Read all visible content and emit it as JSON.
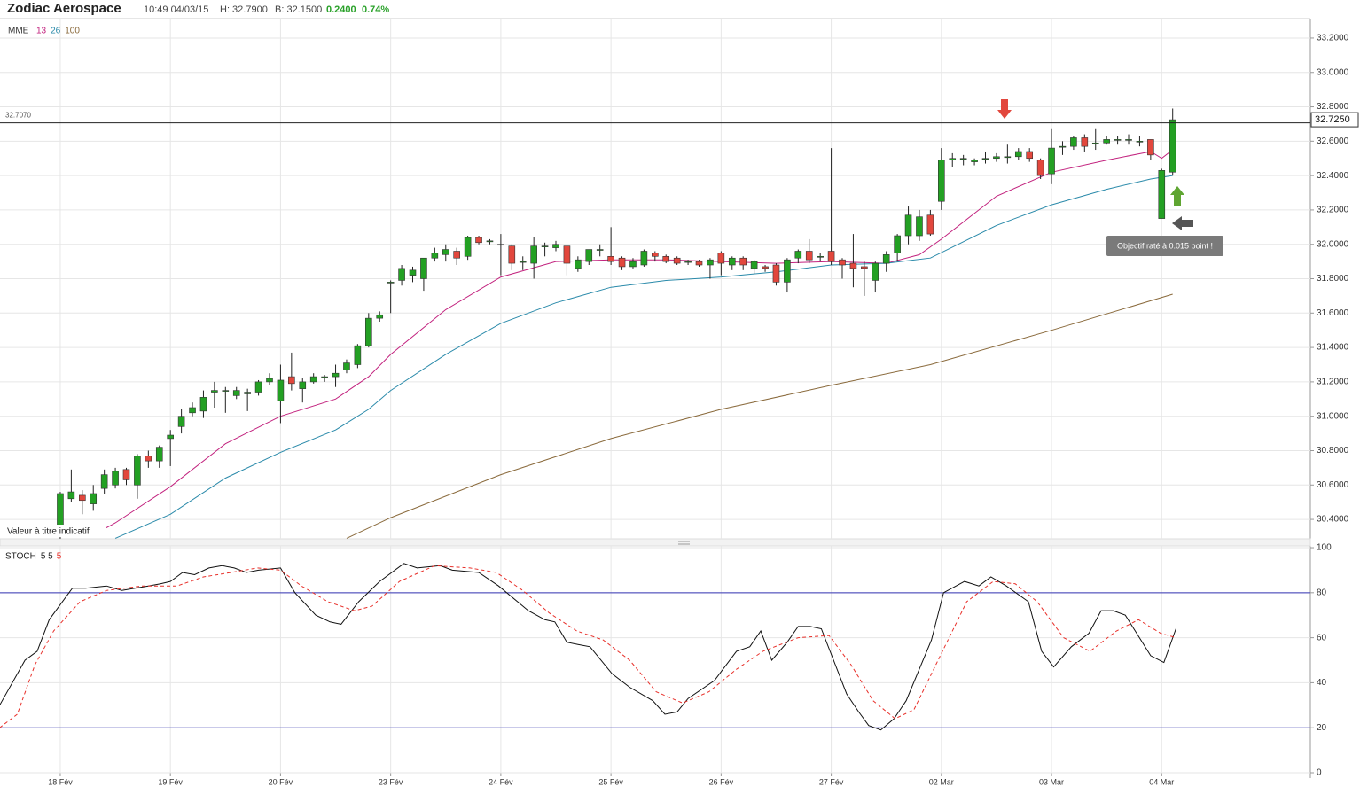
{
  "header": {
    "title": "Zodiac Aerospace",
    "time": "10:49 04/03/15",
    "high": "H: 32.7900",
    "low": "B: 32.1500",
    "change": "0.2400",
    "change_pct": "0.74%"
  },
  "chart_data": [
    {
      "type": "candlestick",
      "legend_title": "MME",
      "categories": [
        "18 Fév",
        null,
        null,
        null,
        null,
        null,
        null,
        null,
        null,
        null,
        "19 Fév",
        null,
        null,
        null,
        null,
        null,
        null,
        null,
        null,
        null,
        "20 Fév",
        null,
        null,
        null,
        null,
        null,
        null,
        null,
        null,
        null,
        "23 Fév",
        null,
        null,
        null,
        null,
        null,
        null,
        null,
        null,
        null,
        "24 Fév",
        null,
        null,
        null,
        null,
        null,
        null,
        null,
        null,
        null,
        "25 Fév",
        null,
        null,
        null,
        null,
        null,
        null,
        null,
        null,
        null,
        "26 Fév",
        null,
        null,
        null,
        null,
        null,
        null,
        null,
        null,
        null,
        "27 Fév",
        null,
        null,
        null,
        null,
        null,
        null,
        null,
        null,
        null,
        "02 Mar",
        null,
        null,
        null,
        null,
        null,
        null,
        null,
        null,
        null,
        "03 Mar",
        null,
        null,
        null,
        null,
        null,
        null,
        null,
        null,
        null,
        "04 Mar",
        null
      ],
      "open": [
        30.3,
        30.52,
        30.54,
        30.49,
        30.58,
        30.6,
        30.69,
        30.6,
        30.77,
        30.74,
        30.87,
        30.94,
        31.02,
        31.03,
        31.14,
        31.15,
        31.12,
        31.13,
        31.14,
        31.2,
        31.09,
        31.23,
        31.16,
        31.2,
        31.23,
        31.23,
        31.27,
        31.3,
        31.41,
        31.57,
        31.78,
        31.79,
        31.82,
        31.8,
        31.92,
        31.94,
        31.96,
        31.93,
        32.04,
        32.02,
        32.0,
        31.99,
        31.9,
        31.89,
        31.99,
        31.98,
        31.99,
        31.86,
        31.9,
        31.97,
        31.93,
        31.92,
        31.87,
        31.88,
        31.95,
        31.93,
        31.92,
        31.9,
        31.9,
        31.88,
        31.95,
        31.88,
        31.92,
        31.86,
        31.87,
        31.88,
        31.78,
        31.92,
        31.96,
        31.93,
        31.96,
        31.91,
        31.89,
        31.87,
        31.79,
        31.89,
        31.95,
        32.05,
        32.05,
        32.17,
        32.25,
        32.49,
        32.5,
        32.48,
        32.5,
        32.5,
        32.51,
        32.51,
        32.54,
        32.49,
        32.41,
        32.57,
        32.57,
        32.62,
        32.59,
        32.59,
        32.61,
        32.61,
        32.6,
        32.61,
        32.15,
        32.42
      ],
      "high": [
        30.56,
        30.69,
        30.57,
        30.6,
        30.69,
        30.7,
        30.7,
        30.78,
        30.8,
        30.83,
        30.92,
        31.04,
        31.08,
        31.15,
        31.2,
        31.17,
        31.17,
        31.16,
        31.21,
        31.25,
        31.3,
        31.37,
        31.22,
        31.25,
        31.24,
        31.3,
        31.33,
        31.42,
        31.6,
        31.61,
        31.79,
        31.88,
        31.87,
        31.92,
        31.98,
        32.0,
        31.98,
        32.05,
        32.05,
        32.03,
        32.06,
        32.0,
        31.93,
        32.04,
        32.01,
        32.02,
        31.99,
        31.93,
        31.97,
        32.0,
        32.1,
        31.93,
        31.92,
        31.97,
        31.96,
        31.94,
        31.93,
        31.91,
        31.91,
        31.92,
        31.96,
        31.93,
        31.93,
        31.91,
        31.88,
        31.89,
        31.92,
        31.97,
        32.03,
        31.95,
        32.56,
        31.92,
        32.06,
        31.9,
        31.9,
        31.96,
        32.06,
        32.22,
        32.2,
        32.2,
        32.56,
        32.53,
        32.52,
        32.5,
        32.54,
        32.53,
        32.58,
        32.56,
        32.56,
        32.5,
        32.67,
        32.6,
        32.63,
        32.64,
        32.67,
        32.63,
        32.63,
        32.64,
        32.63,
        32.61,
        32.44,
        32.79
      ],
      "low": [
        30.28,
        30.5,
        30.43,
        30.45,
        30.55,
        30.58,
        30.6,
        30.52,
        30.7,
        30.7,
        30.71,
        30.9,
        31.0,
        30.99,
        31.05,
        31.02,
        31.1,
        31.03,
        31.12,
        31.18,
        30.96,
        31.15,
        31.08,
        31.19,
        31.2,
        31.17,
        31.25,
        31.28,
        31.4,
        31.55,
        31.6,
        31.76,
        31.78,
        31.73,
        31.9,
        31.9,
        31.88,
        31.91,
        32.0,
        32.0,
        31.82,
        31.85,
        31.85,
        31.8,
        31.93,
        31.96,
        31.82,
        31.84,
        31.88,
        31.93,
        31.88,
        31.85,
        31.86,
        31.87,
        31.9,
        31.89,
        31.88,
        31.88,
        31.87,
        31.8,
        31.82,
        31.85,
        31.85,
        31.83,
        31.84,
        31.76,
        31.72,
        31.89,
        31.89,
        31.9,
        31.88,
        31.8,
        31.75,
        31.7,
        31.72,
        31.84,
        31.9,
        32.0,
        32.02,
        32.05,
        32.2,
        32.45,
        32.46,
        32.46,
        32.47,
        32.48,
        32.47,
        32.49,
        32.48,
        32.38,
        32.35,
        32.52,
        32.55,
        32.54,
        32.55,
        32.58,
        32.58,
        32.58,
        32.57,
        32.49,
        32.15,
        32.4
      ],
      "close": [
        30.55,
        30.56,
        30.51,
        30.55,
        30.66,
        30.68,
        30.63,
        30.77,
        30.74,
        30.82,
        30.89,
        31.0,
        31.05,
        31.11,
        31.15,
        31.15,
        31.15,
        31.14,
        31.2,
        31.22,
        31.21,
        31.19,
        31.2,
        31.23,
        31.23,
        31.25,
        31.31,
        31.41,
        31.57,
        31.59,
        31.78,
        31.86,
        31.85,
        31.92,
        31.95,
        31.97,
        31.92,
        32.04,
        32.01,
        32.02,
        32.0,
        31.89,
        31.9,
        31.99,
        31.99,
        32.0,
        31.89,
        31.91,
        31.97,
        31.97,
        31.9,
        31.87,
        31.9,
        31.96,
        31.93,
        31.9,
        31.89,
        31.9,
        31.88,
        31.91,
        31.89,
        31.92,
        31.88,
        31.9,
        31.86,
        31.78,
        31.91,
        31.96,
        31.91,
        31.93,
        31.9,
        31.88,
        31.86,
        31.86,
        31.89,
        31.94,
        32.05,
        32.17,
        32.16,
        32.06,
        32.49,
        32.5,
        32.5,
        32.49,
        32.5,
        32.51,
        32.51,
        32.54,
        32.5,
        32.4,
        32.56,
        32.57,
        32.62,
        32.57,
        32.59,
        32.61,
        32.61,
        32.61,
        32.6,
        32.52,
        32.43,
        32.725
      ],
      "up_color": "#23a023",
      "down_color": "#e2473d",
      "series": [
        {
          "name": "13",
          "color": "#c2227e",
          "x": [
            3,
            5,
            10,
            15,
            20,
            25,
            28,
            30,
            35,
            40,
            45,
            50,
            55,
            60,
            65,
            70,
            75,
            78,
            80,
            85,
            90,
            95,
            99,
            100,
            101
          ],
          "values": [
            30.31,
            30.38,
            30.59,
            30.84,
            31.0,
            31.1,
            31.23,
            31.36,
            31.62,
            31.81,
            31.9,
            31.91,
            31.91,
            31.9,
            31.89,
            31.9,
            31.89,
            31.94,
            32.03,
            32.28,
            32.42,
            32.49,
            32.54,
            32.5,
            32.55
          ]
        },
        {
          "name": "26",
          "color": "#2a8aaa",
          "x": [
            5,
            10,
            15,
            20,
            25,
            28,
            30,
            35,
            40,
            45,
            50,
            55,
            60,
            65,
            70,
            75,
            79,
            85,
            90,
            95,
            99,
            101
          ],
          "values": [
            30.29,
            30.43,
            30.64,
            30.79,
            30.92,
            31.04,
            31.15,
            31.36,
            31.54,
            31.66,
            31.75,
            31.79,
            31.81,
            31.84,
            31.88,
            31.89,
            31.92,
            32.11,
            32.23,
            32.32,
            32.38,
            32.4
          ]
        },
        {
          "name": "100",
          "color": "#8a6a3c",
          "x": [
            26,
            30,
            40,
            50,
            60,
            70,
            79,
            90,
            101
          ],
          "values": [
            30.29,
            30.41,
            30.66,
            30.87,
            31.04,
            31.18,
            31.3,
            31.5,
            31.71
          ]
        }
      ],
      "xlim": [
        -5.47,
        113.5
      ],
      "ylim": [
        30.287,
        33.308
      ],
      "yticks": [
        {
          "value": 30.4,
          "label": "30.4000"
        },
        {
          "value": 30.6,
          "label": "30.6000"
        },
        {
          "value": 30.8,
          "label": "30.8000"
        },
        {
          "value": 31.0,
          "label": "31.0000"
        },
        {
          "value": 31.2,
          "label": "31.2000"
        },
        {
          "value": 31.4,
          "label": "31.4000"
        },
        {
          "value": 31.6,
          "label": "31.6000"
        },
        {
          "value": 31.8,
          "label": "31.8000"
        },
        {
          "value": 32.0,
          "label": "32.0000"
        },
        {
          "value": 32.2,
          "label": "32.2000"
        },
        {
          "value": 32.4,
          "label": "32.4000"
        },
        {
          "value": 32.6,
          "label": "32.6000"
        },
        {
          "value": 32.8,
          "label": "32.8000"
        },
        {
          "value": 33.0,
          "label": "33.0000"
        },
        {
          "value": 33.2,
          "label": "33.2000"
        }
      ],
      "grid": true,
      "reference_line": {
        "value": 32.707,
        "label": "32.7070"
      },
      "last_price": {
        "value": 32.725,
        "label": "32.7250"
      },
      "note": "Valeur à titre indicatif",
      "annotation": "Objectif raté à 0.015 point !"
    },
    {
      "type": "line",
      "title": "STOCH",
      "series": [
        {
          "name": "5 5",
          "color": "#111111",
          "dashed": false,
          "x": [
            -5.5,
            -3.2,
            -2.1,
            -1.0,
            1.1,
            2.3,
            4.2,
            5.6,
            8.0,
            9.1,
            10,
            11.1,
            12.2,
            13.5,
            14.7,
            15.8,
            16.9,
            18.0,
            20,
            21.3,
            23.2,
            24.5,
            25.5,
            27.1,
            29,
            31.2,
            32.4,
            34.5,
            35.6,
            38,
            39.8,
            42.5,
            44,
            44.9,
            46,
            47,
            48.1,
            50.1,
            51.7,
            53.8,
            54.9,
            56,
            57,
            59.4,
            61.4,
            62.6,
            63.6,
            64.6,
            66,
            67,
            68.1,
            69.1,
            71.4,
            72.5,
            73.4,
            74.5,
            75.7,
            76.8,
            79.1,
            80.2,
            82.1,
            83.4,
            84.5,
            85.9,
            87.9,
            89.1,
            90.2,
            91.8,
            93.4,
            94.5,
            95.6,
            96.7,
            99,
            100.2,
            101.3
          ],
          "values": [
            30,
            50,
            54,
            68,
            82,
            82,
            83,
            81,
            83,
            84,
            85,
            89,
            88,
            91,
            92,
            91,
            89,
            90,
            91,
            80,
            70,
            67,
            66,
            76,
            85,
            93,
            91,
            92,
            90,
            89,
            83,
            72,
            68,
            67,
            58,
            57,
            56,
            44,
            38,
            32,
            26,
            27,
            33,
            41,
            54,
            56,
            63,
            50,
            58,
            65,
            65,
            64,
            35,
            27,
            21,
            19,
            24,
            32,
            59,
            80,
            85,
            83,
            87,
            83,
            76,
            54,
            47,
            56,
            62,
            72,
            72,
            70,
            52,
            49,
            64
          ]
        },
        {
          "name": "5",
          "color": "#e8302a",
          "dashed": true,
          "x": [
            -5.5,
            -3.9,
            -2.3,
            -0.6,
            1.8,
            4.2,
            7.4,
            10.6,
            13,
            15.5,
            17.9,
            20,
            21.9,
            24.3,
            26.7,
            28.3,
            30.8,
            34,
            37.2,
            39.6,
            42,
            44.4,
            46.9,
            49.3,
            51.7,
            54.1,
            56.5,
            58.9,
            61.4,
            63.8,
            67,
            69.8,
            71.8,
            73.8,
            75.8,
            77.5,
            79.9,
            82.3,
            84.7,
            86.7,
            88.7,
            91.1,
            93.5,
            95.9,
            97.9,
            99.9,
            101.3
          ],
          "values": [
            20,
            26,
            48,
            63,
            76,
            81,
            83,
            83,
            87,
            89,
            91,
            90,
            83,
            76,
            72,
            74,
            85,
            92,
            91,
            89,
            81,
            71,
            63,
            59,
            50,
            36,
            31,
            36,
            46,
            54,
            60,
            61,
            48,
            32,
            24,
            28,
            52,
            76,
            85,
            84,
            76,
            60,
            54,
            63,
            68,
            62,
            60
          ]
        }
      ],
      "xlim": [
        -5.47,
        113.5
      ],
      "ylim": [
        0,
        100.8
      ],
      "yticks": [
        0,
        20,
        40,
        60,
        80,
        100
      ],
      "hlines": [
        20,
        80
      ],
      "hline_color": "#3434b4"
    }
  ]
}
